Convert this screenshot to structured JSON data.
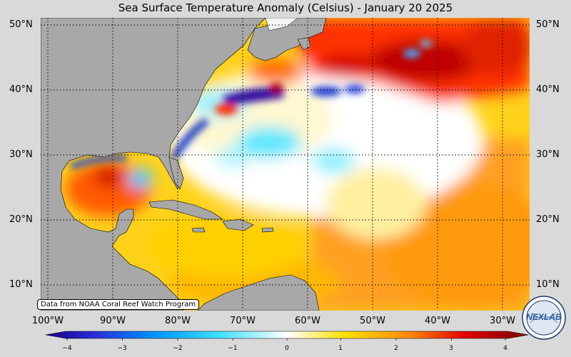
{
  "title": "Sea Surface Temperature Anomaly (Celsius) - January 20 2025",
  "lat_labels": [
    "50°N",
    "40°N",
    "30°N",
    "20°N",
    "10°N"
  ],
  "lon_labels": [
    "100°W",
    "90°W",
    "80°W",
    "70°W",
    "60°W",
    "50°W",
    "40°W",
    "30°W"
  ],
  "credit": "Data from NOAA Coral Reef Watch Program",
  "colorbar": {
    "ticks": [
      "−4",
      "−3",
      "−2",
      "−1",
      "0",
      "1",
      "2",
      "3",
      "4"
    ],
    "range": [
      -4,
      4
    ],
    "colors": [
      "#1a0080",
      "#2b2bd8",
      "#0090ff",
      "#40e0ff",
      "#ffffff",
      "#ffe000",
      "#ff8c00",
      "#e00000",
      "#7a0000"
    ]
  },
  "logo": {
    "text": "NEXLAB"
  }
}
